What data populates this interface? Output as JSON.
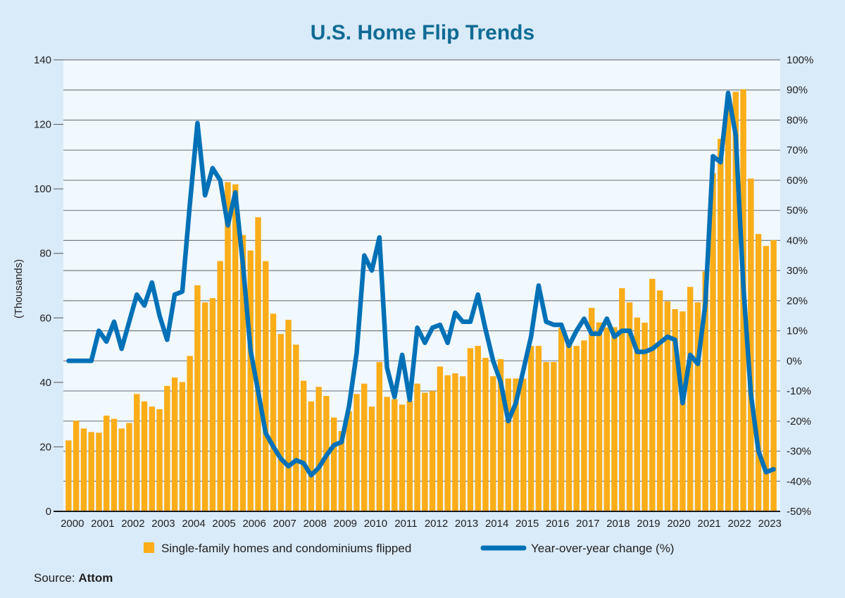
{
  "chart_data": {
    "type": "bar+line",
    "title": "U.S. Home Flip Trends",
    "ylabel": "(Thousands)",
    "ylim": [
      0,
      140
    ],
    "y_ticks": [
      "0",
      "20",
      "40",
      "60",
      "80",
      "100",
      "120",
      "140"
    ],
    "y2lim": [
      -50,
      100
    ],
    "y2_ticks": [
      "-50%",
      "-40%",
      "-30%",
      "-20%",
      "-10%",
      "0%",
      "10%",
      "20%",
      "30%",
      "40%",
      "50%",
      "60%",
      "70%",
      "80%",
      "90%",
      "100%"
    ],
    "x_tick_labels": [
      "2000",
      "2001",
      "2002",
      "2003",
      "2004",
      "2005",
      "2006",
      "2007",
      "2008",
      "2009",
      "2010",
      "2011",
      "2012",
      "2013",
      "2014",
      "2015",
      "2016",
      "2017",
      "2018",
      "2019",
      "2020",
      "2021",
      "2022",
      "2023"
    ],
    "x_range": [
      "2000 Q1",
      "2023 Q2"
    ],
    "grid": true,
    "legend_position": "bottom",
    "series": [
      {
        "name": "Single-family homes and condominiums flipped",
        "type": "bar",
        "axis": "left",
        "color": "#fbad18",
        "values": [
          22.0,
          28.1,
          25.7,
          24.6,
          24.4,
          29.7,
          28.7,
          25.7,
          27.4,
          36.4,
          34.1,
          32.5,
          31.7,
          38.9,
          41.5,
          40.1,
          48.2,
          70.1,
          64.8,
          66.1,
          77.6,
          102.1,
          101.4,
          85.7,
          80.9,
          91.2,
          77.6,
          61.3,
          55.0,
          59.4,
          51.7,
          40.5,
          34.1,
          38.6,
          35.8,
          29.1,
          24.9,
          31.0,
          36.4,
          39.6,
          32.5,
          46.3,
          35.5,
          34.8,
          33.1,
          34.3,
          39.6,
          36.8,
          37.3,
          44.9,
          42.2,
          42.8,
          41.9,
          50.6,
          51.3,
          47.6,
          41.9,
          47.2,
          41.2,
          41.2,
          41.2,
          51.3,
          51.3,
          46.3,
          46.3,
          56.9,
          51.5,
          51.3,
          53.0,
          63.1,
          58.6,
          57.0,
          57.1,
          69.2,
          64.8,
          60.1,
          58.5,
          72.1,
          68.5,
          65.1,
          62.7,
          62.0,
          69.6,
          64.8,
          74.4,
          104.9,
          115.5,
          126.6,
          130.1,
          130.9,
          103.2,
          86.0,
          82.3,
          84.1
        ]
      },
      {
        "name": "Year-over-year change (%)",
        "type": "line",
        "axis": "right",
        "color": "#0071b7",
        "values": [
          0,
          0,
          0,
          0,
          10,
          6.4,
          13,
          4,
          13,
          22,
          18.4,
          26,
          15,
          7,
          22,
          23,
          52,
          79,
          55,
          64,
          60,
          45,
          56,
          32,
          3.5,
          -10,
          -24,
          -28.5,
          -32.5,
          -35,
          -33,
          -34,
          -38,
          -35.5,
          -31.5,
          -28,
          -27,
          -15,
          2.6,
          35,
          30,
          41,
          -2.3,
          -12,
          2,
          -13,
          11,
          6,
          11,
          12,
          6,
          16,
          13,
          13,
          22,
          10.5,
          0,
          -7,
          -20,
          -14,
          -3,
          8,
          25,
          13,
          12,
          12,
          5,
          10,
          14,
          9,
          9,
          14,
          8,
          10,
          10,
          3,
          3,
          4,
          6,
          8,
          7,
          -14,
          2,
          -1,
          19,
          68,
          66,
          89,
          75,
          25,
          -11,
          -30,
          -37,
          -36
        ]
      }
    ],
    "source_label": "Source:",
    "source_name": "Attom"
  },
  "colors": {
    "background": "#d9eaf8",
    "plot_background": "#f1f8fe",
    "title": "#0f6b94",
    "gridline": "#7a7f84"
  }
}
